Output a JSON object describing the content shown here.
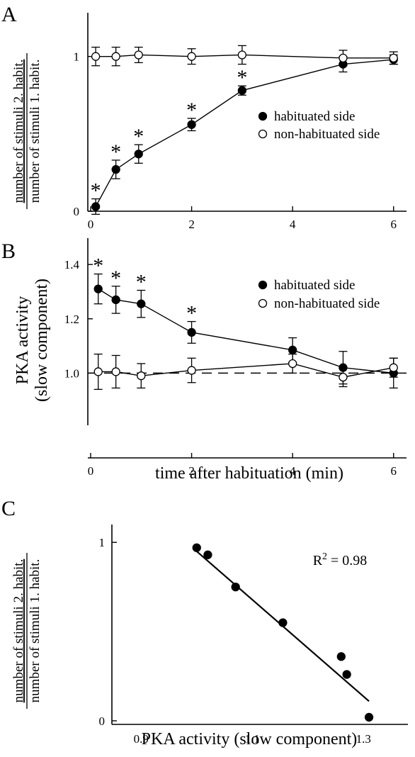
{
  "panel_letters": [
    "A",
    "B",
    "C"
  ],
  "legend": {
    "filled_label": "habituated side",
    "open_label": "non-habituated side"
  },
  "chart_data": [
    {
      "panel": "A",
      "type": "line",
      "ylabel_numerator": "number of stimuli 2. habit.",
      "ylabel_denominator": "number of stimuli 1. habit.",
      "xlim": [
        0,
        6.2
      ],
      "ylim": [
        0,
        1.2
      ],
      "x_ticks": [
        0,
        2,
        4,
        6
      ],
      "y_ticks": [
        0,
        1
      ],
      "y_tick_labels": [
        "0",
        "1"
      ],
      "x_tick_labels": [
        "0",
        "2",
        "4",
        "6"
      ],
      "series": [
        {
          "name": "habituated side",
          "marker": "filled",
          "x": [
            0.1,
            0.5,
            0.95,
            2,
            3,
            5,
            6
          ],
          "y": [
            0.03,
            0.27,
            0.37,
            0.56,
            0.78,
            0.95,
            0.98
          ],
          "err": [
            0.05,
            0.06,
            0.06,
            0.04,
            0.03,
            0.05,
            0.03
          ]
        },
        {
          "name": "non-habituated side",
          "marker": "open",
          "x": [
            0.1,
            0.5,
            0.95,
            2,
            3,
            5,
            6
          ],
          "y": [
            1.0,
            1.0,
            1.01,
            1.0,
            1.01,
            0.99,
            0.99
          ],
          "err": [
            0.06,
            0.06,
            0.05,
            0.05,
            0.06,
            0.05,
            0.04
          ]
        }
      ],
      "significance": {
        "marker": "*",
        "x": [
          0.1,
          0.5,
          0.95,
          2,
          3
        ]
      }
    },
    {
      "panel": "B",
      "type": "line",
      "ylabel_line1": "PKA activity",
      "ylabel_line2": "(slow component)",
      "xlabel": "time after habituation (min)",
      "xlim": [
        0,
        6.2
      ],
      "ylim": [
        0.86,
        1.45
      ],
      "x_ticks": [
        0,
        2,
        4,
        6
      ],
      "x_tick_labels": [
        "0",
        "2",
        "4",
        "6"
      ],
      "y_ticks": [
        1.0,
        1.2,
        1.4
      ],
      "y_tick_labels": [
        "1.0",
        "1.2",
        "1.4"
      ],
      "reference_y": 1.0,
      "series": [
        {
          "name": "habituated side",
          "marker": "filled",
          "x": [
            0.15,
            0.5,
            1,
            2,
            4,
            5,
            6
          ],
          "y": [
            1.31,
            1.27,
            1.255,
            1.15,
            1.085,
            1.02,
            1.0
          ],
          "err": [
            0.055,
            0.05,
            0.05,
            0.04,
            0.045,
            0.06,
            0.055
          ]
        },
        {
          "name": "non-habituated side",
          "marker": "open",
          "x": [
            0.15,
            0.5,
            1,
            2,
            4,
            5,
            6
          ],
          "y": [
            1.005,
            1.005,
            0.99,
            1.01,
            1.035,
            0.985,
            1.02
          ],
          "err": [
            0.065,
            0.06,
            0.045,
            0.045,
            0.035,
            0.035,
            0.035
          ]
        }
      ],
      "significance": {
        "marker": "*",
        "x": [
          0.15,
          0.5,
          1,
          2
        ]
      }
    },
    {
      "panel": "C",
      "type": "scatter",
      "ylabel_numerator": "number of stimuli 2. habit.",
      "ylabel_denominator": "number of stimuli 1. habit.",
      "xlabel": "PKA activity (slow component)",
      "xlim": [
        0.85,
        1.38
      ],
      "ylim": [
        -0.02,
        1.1
      ],
      "x_ticks": [
        0.9,
        1.1,
        1.3
      ],
      "x_tick_labels": [
        "0.9",
        "1.1",
        "1.3"
      ],
      "y_ticks": [
        0,
        1
      ],
      "y_tick_labels": [
        "0",
        "1"
      ],
      "points": {
        "x": [
          1.0,
          1.02,
          1.07,
          1.155,
          1.26,
          1.27,
          1.31
        ],
        "y": [
          0.97,
          0.93,
          0.75,
          0.55,
          0.36,
          0.26,
          0.02
        ]
      },
      "regression": {
        "x": [
          1.0,
          1.31
        ],
        "y": [
          0.95,
          0.11
        ]
      },
      "annotation": {
        "base": "R",
        "sup": "2",
        "rest": " = 0.98"
      }
    }
  ]
}
